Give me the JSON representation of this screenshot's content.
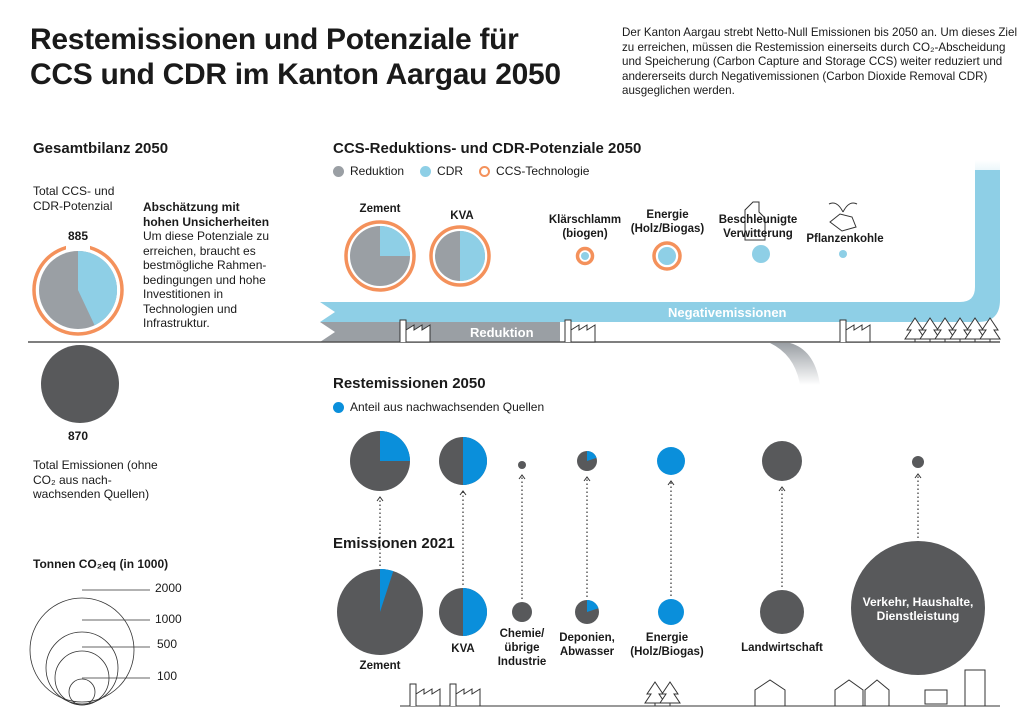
{
  "header": {
    "title_line1": "Restemissionen und Potenziale für",
    "title_line2": "CCS und CDR im Kanton Aargau 2050",
    "description": "Der Kanton Aargau strebt Netto-Null Emissionen bis 2050 an. Um dieses Ziel zu erreichen, müssen die Restemission einerseits durch CO₂-Abscheidung und Speicherung (Carbon Capture and Storage CCS) weiter reduziert und andererseits durch Negativemissionen (Carbon Dioxide Removal CDR) ausgeglichen werden."
  },
  "colors": {
    "reduktion": "#9a9fa4",
    "cdr": "#8ecfe6",
    "ccs_ring": "#f4915b",
    "emission": "#58595b",
    "renewable": "#0a8fdb"
  },
  "gesamtbilanz": {
    "title": "Gesamtbilanz 2050",
    "potential_label": "Total CCS- und CDR-Potenzial",
    "potential_value": "885",
    "potential_cdr_share": 0.43,
    "note_title": "Abschätzung mit hohen Unsicherheiten",
    "note_text": "Um diese Potenziale zu erreichen, braucht es bestmögliche Rahmen-bedingungen und hohe Investitionen in Technologien und Infrastruktur.",
    "emission_value": "870",
    "emission_label": "Total Emissionen (ohne CO₂ aus nach-wachsenden Quellen)"
  },
  "scale_legend": {
    "title": "Tonnen CO₂eq (in 1000)",
    "values": [
      "2000",
      "1000",
      "500",
      "100"
    ]
  },
  "potentials": {
    "title": "CCS-Reduktions- und CDR-Potenziale 2050",
    "legend": {
      "reduktion": "Reduktion",
      "cdr": "CDR",
      "ccs": "CCS-Technologie"
    },
    "items": [
      {
        "label": "Zement",
        "cdr_share": 0.25,
        "ccs": true
      },
      {
        "label": "KVA",
        "cdr_share": 0.5,
        "ccs": true
      },
      {
        "label": "Klärschlamm (biogen)",
        "cdr_share": 1.0,
        "ccs": true
      },
      {
        "label": "Energie (Holz/Biogas)",
        "cdr_share": 1.0,
        "ccs": true
      },
      {
        "label": "Beschleunigte Verwitterung",
        "cdr_share": 1.0,
        "ccs": false
      },
      {
        "label": "Pflanzenkohle",
        "cdr_share": 1.0,
        "ccs": false
      }
    ],
    "band_negative": "Negativemissionen",
    "band_reduction": "Reduktion"
  },
  "rest2050": {
    "title": "Restemissionen 2050",
    "legend": "Anteil aus nachwachsenden Quellen",
    "items": [
      {
        "sector": "Zement",
        "renewable_share": 0.25
      },
      {
        "sector": "KVA",
        "renewable_share": 0.5
      },
      {
        "sector": "Chemie/übrige Industrie",
        "renewable_share": 0
      },
      {
        "sector": "Deponien, Abwasser",
        "renewable_share": 0.2
      },
      {
        "sector": "Energie (Holz/Biogas)",
        "renewable_share": 1.0
      },
      {
        "sector": "Landwirtschaft",
        "renewable_share": 0
      },
      {
        "sector": "Verkehr, Haushalte, Dienstleistung",
        "renewable_share": 0
      }
    ]
  },
  "em2021": {
    "title": "Emissionen 2021",
    "items": [
      {
        "label": "Zement",
        "renewable_share": 0.05
      },
      {
        "label": "KVA",
        "renewable_share": 0.5
      },
      {
        "label": "Chemie/ übrige Industrie",
        "renewable_share": 0
      },
      {
        "label": "Deponien, Abwasser",
        "renewable_share": 0.2
      },
      {
        "label": "Energie (Holz/Biogas)",
        "renewable_share": 1.0
      },
      {
        "label": "Landwirtschaft",
        "renewable_share": 0
      },
      {
        "label": "Verkehr, Haushalte, Dienstleistung",
        "renewable_share": 0
      }
    ]
  }
}
